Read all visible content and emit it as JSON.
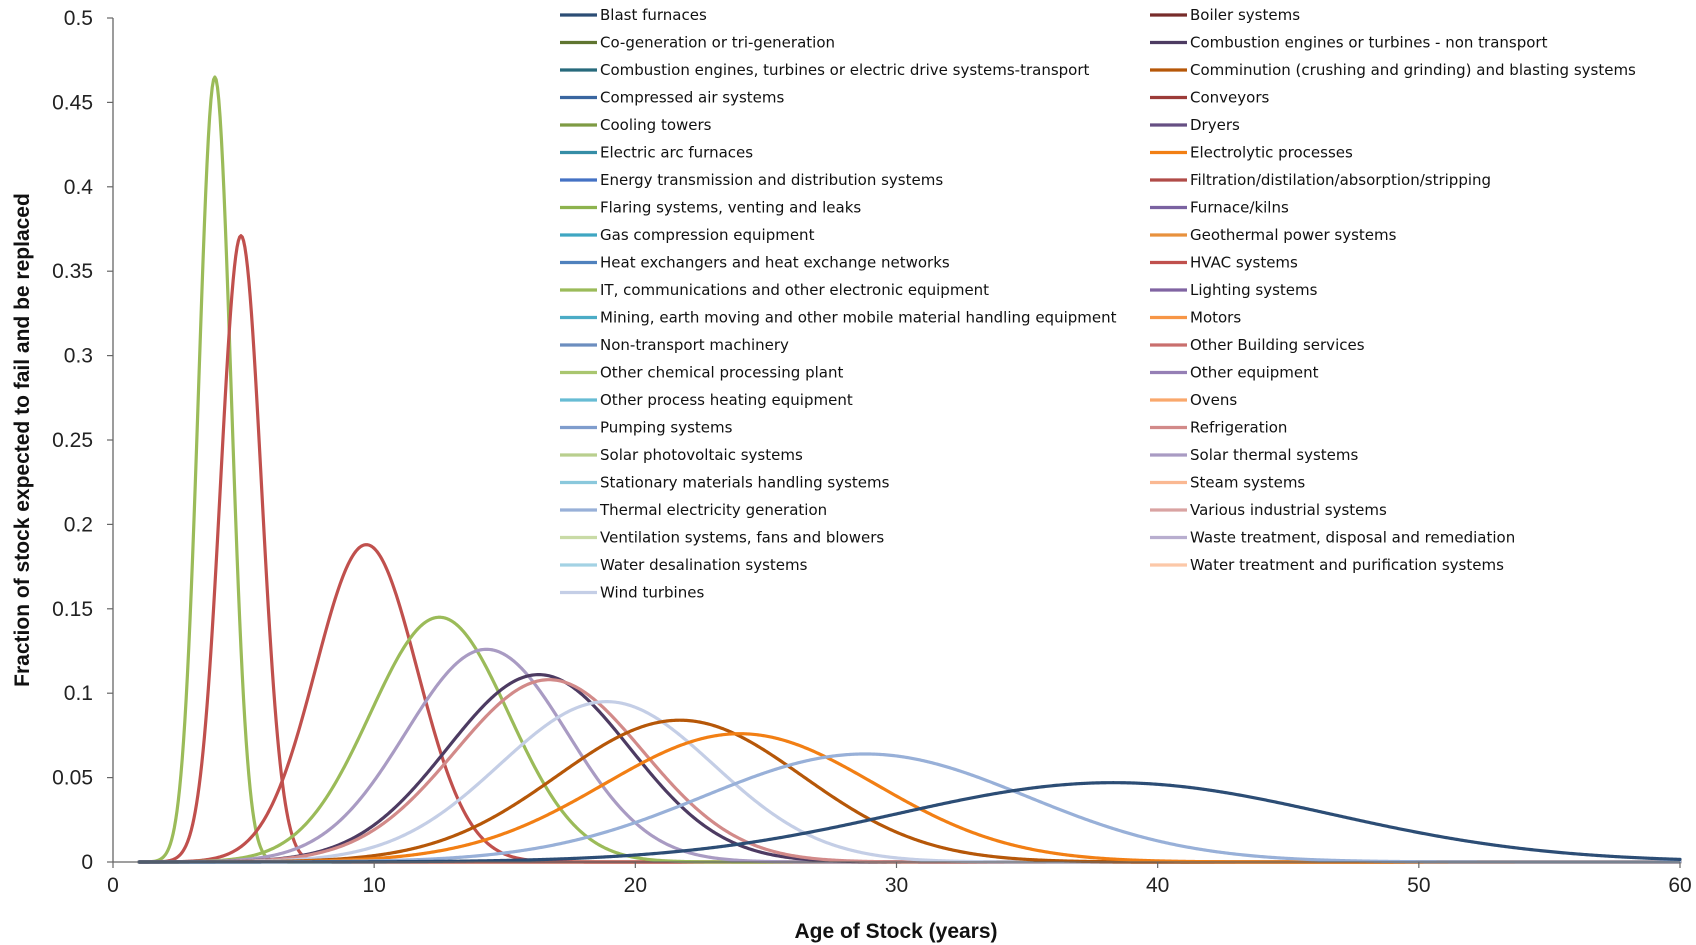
{
  "chart_data": {
    "type": "line",
    "title": "",
    "xlabel": "Age of Stock (years)",
    "ylabel": "Fraction of stock expected to fail and be replaced",
    "xlim": [
      0,
      60
    ],
    "ylim": [
      0,
      0.5
    ],
    "x_ticks": [
      "0",
      "10",
      "20",
      "30",
      "40",
      "50",
      "60"
    ],
    "y_ticks": [
      "0",
      "0.05",
      "0.1",
      "0.15",
      "0.2",
      "0.25",
      "0.3",
      "0.35",
      "0.4",
      "0.45",
      "0.5"
    ],
    "grid": false,
    "legend_position": "top-right",
    "legend": [
      {
        "name": "Blast furnaces",
        "color": "#2c4d75"
      },
      {
        "name": "Boiler systems",
        "color": "#772c2a"
      },
      {
        "name": "Co-generation or tri-generation",
        "color": "#5f7530"
      },
      {
        "name": "Combustion engines or turbines - non transport",
        "color": "#4d3b62"
      },
      {
        "name": "Combustion engines, turbines or electric drive systems-transport",
        "color": "#276a7c"
      },
      {
        "name": "Comminution (crushing and grinding) and blasting systems",
        "color": "#b65708"
      },
      {
        "name": "Compressed air systems",
        "color": "#3a66a0"
      },
      {
        "name": "Conveyors",
        "color": "#9c3b38"
      },
      {
        "name": "Cooling towers",
        "color": "#7e9b43"
      },
      {
        "name": "Dryers",
        "color": "#664f83"
      },
      {
        "name": "Electric arc furnaces",
        "color": "#358da6"
      },
      {
        "name": "Electrolytic processes",
        "color": "#f27f14"
      },
      {
        "name": "Energy transmission and distribution systems",
        "color": "#4472c4"
      },
      {
        "name": "Filtration/distilation/absorption/stripping",
        "color": "#b04b48"
      },
      {
        "name": "Flaring systems, venting and leaks",
        "color": "#8db34e"
      },
      {
        "name": "Furnace/kilns",
        "color": "#7a62a1"
      },
      {
        "name": "Gas compression equipment",
        "color": "#3fa6c2"
      },
      {
        "name": "Geothermal power systems",
        "color": "#e8913d"
      },
      {
        "name": "Heat exchangers and heat exchange networks",
        "color": "#4f81bd"
      },
      {
        "name": "HVAC systems",
        "color": "#c0504d"
      },
      {
        "name": "IT, communications and other electronic equipment",
        "color": "#9bbb59"
      },
      {
        "name": "Lighting systems",
        "color": "#8064a2"
      },
      {
        "name": "Mining, earth moving and other mobile material handling equipment",
        "color": "#4bacc6"
      },
      {
        "name": "Motors",
        "color": "#f79646"
      },
      {
        "name": "Non-transport machinery",
        "color": "#6c8ebf"
      },
      {
        "name": "Other Building services",
        "color": "#c96f6d"
      },
      {
        "name": "Other chemical processing plant",
        "color": "#a9c66f"
      },
      {
        "name": "Other equipment",
        "color": "#957fb5"
      },
      {
        "name": "Other process heating equipment",
        "color": "#67bcd4"
      },
      {
        "name": "Ovens",
        "color": "#f9a86c"
      },
      {
        "name": "Pumping systems",
        "color": "#7f9dcd"
      },
      {
        "name": "Refrigeration",
        "color": "#d28a89"
      },
      {
        "name": "Solar photovoltaic systems",
        "color": "#b9cf8e"
      },
      {
        "name": "Solar thermal systems",
        "color": "#a99bc3"
      },
      {
        "name": "Stationary materials handling systems",
        "color": "#8ac8dc"
      },
      {
        "name": "Steam systems",
        "color": "#fab892"
      },
      {
        "name": "Thermal electricity generation",
        "color": "#98b0d8"
      },
      {
        "name": "Various industrial systems",
        "color": "#d9a3a2"
      },
      {
        "name": "Ventilation systems, fans and blowers",
        "color": "#c9dba6"
      },
      {
        "name": "Waste treatment, disposal and remediation",
        "color": "#b8aecf"
      },
      {
        "name": "Water desalination systems",
        "color": "#a3d2e4"
      },
      {
        "name": "Water treatment and purification systems",
        "color": "#fcc8a8"
      },
      {
        "name": "Wind turbines",
        "color": "#c4cee6"
      }
    ],
    "series": [
      {
        "color": "#9bbb59",
        "x_start": 1,
        "peak_x": 3.9,
        "peak_y": 0.465,
        "sd": 0.62
      },
      {
        "color": "#c0504d",
        "x_start": 1,
        "peak_x": 4.9,
        "peak_y": 0.371,
        "sd": 0.78
      },
      {
        "color": "#c0504d",
        "x_start": 1,
        "peak_x": 9.7,
        "peak_y": 0.188,
        "sd": 1.95
      },
      {
        "color": "#9bbb59",
        "x_start": 1,
        "peak_x": 12.5,
        "peak_y": 0.145,
        "sd": 2.65
      },
      {
        "color": "#a99bc3",
        "x_start": 1,
        "peak_x": 14.3,
        "peak_y": 0.126,
        "sd": 3.1
      },
      {
        "color": "#4d3b62",
        "x_start": 1,
        "peak_x": 16.3,
        "peak_y": 0.111,
        "sd": 3.5
      },
      {
        "color": "#d28a89",
        "x_start": 1,
        "peak_x": 16.7,
        "peak_y": 0.108,
        "sd": 3.6
      },
      {
        "color": "#c4cee6",
        "x_start": 1,
        "peak_x": 18.9,
        "peak_y": 0.095,
        "sd": 4.1
      },
      {
        "color": "#b65708",
        "x_start": 1,
        "peak_x": 21.7,
        "peak_y": 0.084,
        "sd": 4.7
      },
      {
        "color": "#f27f14",
        "x_start": 1,
        "peak_x": 24.0,
        "peak_y": 0.076,
        "sd": 5.2
      },
      {
        "color": "#98b0d8",
        "x_start": 1,
        "peak_x": 28.8,
        "peak_y": 0.064,
        "sd": 6.2
      },
      {
        "color": "#2c4d75",
        "x_start": 1,
        "peak_x": 38.3,
        "peak_y": 0.047,
        "sd": 8.3
      }
    ]
  }
}
